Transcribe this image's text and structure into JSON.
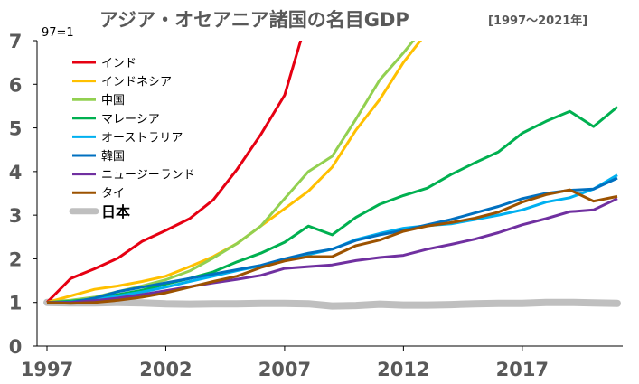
{
  "chart_data": {
    "type": "line",
    "title": "アジア・オセアニア諸国の名目GDP",
    "subtitle": "[1997～2021年]",
    "note": "97=1",
    "xlabel": "",
    "ylabel": "",
    "xlim": [
      1997,
      2021
    ],
    "ylim": [
      0,
      7
    ],
    "x_ticks": [
      "1997",
      "2002",
      "2007",
      "2012",
      "2017"
    ],
    "y_ticks": [
      "0",
      "1",
      "2",
      "3",
      "4",
      "5",
      "6",
      "7"
    ],
    "grid": false,
    "legend_position": "top-left",
    "x": [
      1997,
      1998,
      1999,
      2000,
      2001,
      2002,
      2003,
      2004,
      2005,
      2006,
      2007,
      2008,
      2009,
      2010,
      2011,
      2012,
      2013,
      2014,
      2015,
      2016,
      2017,
      2018,
      2019,
      2020,
      2021
    ],
    "series": [
      {
        "name": "インド",
        "color": "#e60012",
        "bold": false,
        "values": [
          1.0,
          1.55,
          1.77,
          2.02,
          2.4,
          2.65,
          2.92,
          3.35,
          4.05,
          4.85,
          5.75,
          7.6,
          null,
          null,
          null,
          null,
          null,
          null,
          null,
          null,
          null,
          null,
          null,
          null,
          null
        ]
      },
      {
        "name": "インドネシア",
        "color": "#ffc000",
        "bold": false,
        "values": [
          1.0,
          1.15,
          1.3,
          1.38,
          1.48,
          1.6,
          1.82,
          2.05,
          2.35,
          2.75,
          3.15,
          3.55,
          4.1,
          4.95,
          5.65,
          6.5,
          7.2,
          null,
          null,
          null,
          null,
          null,
          null,
          null,
          null
        ]
      },
      {
        "name": "中国",
        "color": "#92d050",
        "bold": false,
        "values": [
          1.0,
          1.05,
          1.12,
          1.25,
          1.38,
          1.52,
          1.72,
          2.02,
          2.35,
          2.75,
          3.38,
          4.0,
          4.35,
          5.2,
          6.1,
          6.72,
          7.4,
          null,
          null,
          null,
          null,
          null,
          null,
          null,
          null
        ]
      },
      {
        "name": "マレーシア",
        "color": "#00b050",
        "bold": false,
        "values": [
          1.0,
          1.03,
          1.08,
          1.18,
          1.28,
          1.42,
          1.55,
          1.7,
          1.93,
          2.13,
          2.38,
          2.75,
          2.55,
          2.95,
          3.25,
          3.45,
          3.62,
          3.93,
          4.2,
          4.45,
          4.88,
          5.15,
          5.38,
          5.03,
          5.48
        ]
      },
      {
        "name": "オーストラリア",
        "color": "#00b0f0",
        "bold": false,
        "values": [
          1.0,
          1.01,
          1.06,
          1.15,
          1.24,
          1.35,
          1.48,
          1.6,
          1.73,
          1.84,
          1.96,
          2.1,
          2.22,
          2.44,
          2.58,
          2.7,
          2.76,
          2.8,
          2.9,
          3.0,
          3.12,
          3.3,
          3.4,
          3.6,
          3.92
        ]
      },
      {
        "name": "韓国",
        "color": "#0070c0",
        "bold": false,
        "values": [
          1.0,
          1.0,
          1.1,
          1.25,
          1.35,
          1.45,
          1.55,
          1.65,
          1.75,
          1.85,
          2.0,
          2.13,
          2.22,
          2.42,
          2.55,
          2.65,
          2.78,
          2.9,
          3.05,
          3.2,
          3.38,
          3.5,
          3.57,
          3.6,
          3.85
        ]
      },
      {
        "name": "ニュージーランド",
        "color": "#7030a0",
        "bold": false,
        "values": [
          1.0,
          1.0,
          1.04,
          1.1,
          1.18,
          1.27,
          1.36,
          1.45,
          1.53,
          1.62,
          1.78,
          1.82,
          1.86,
          1.96,
          2.03,
          2.08,
          2.22,
          2.33,
          2.45,
          2.6,
          2.78,
          2.92,
          3.08,
          3.12,
          3.38
        ]
      },
      {
        "name": "タイ",
        "color": "#9c5200",
        "bold": false,
        "values": [
          1.0,
          0.98,
          1.0,
          1.05,
          1.12,
          1.22,
          1.35,
          1.48,
          1.6,
          1.8,
          1.95,
          2.05,
          2.05,
          2.3,
          2.43,
          2.63,
          2.75,
          2.83,
          2.93,
          3.07,
          3.3,
          3.47,
          3.58,
          3.32,
          3.43
        ]
      },
      {
        "name": "日本",
        "color": "#bfbfbf",
        "bold": true,
        "values": [
          1.0,
          0.99,
          0.99,
          1.0,
          0.99,
          0.97,
          0.96,
          0.97,
          0.97,
          0.98,
          0.98,
          0.97,
          0.92,
          0.93,
          0.96,
          0.94,
          0.94,
          0.95,
          0.97,
          0.98,
          0.98,
          1.0,
          1.0,
          0.99,
          0.98
        ]
      }
    ]
  }
}
